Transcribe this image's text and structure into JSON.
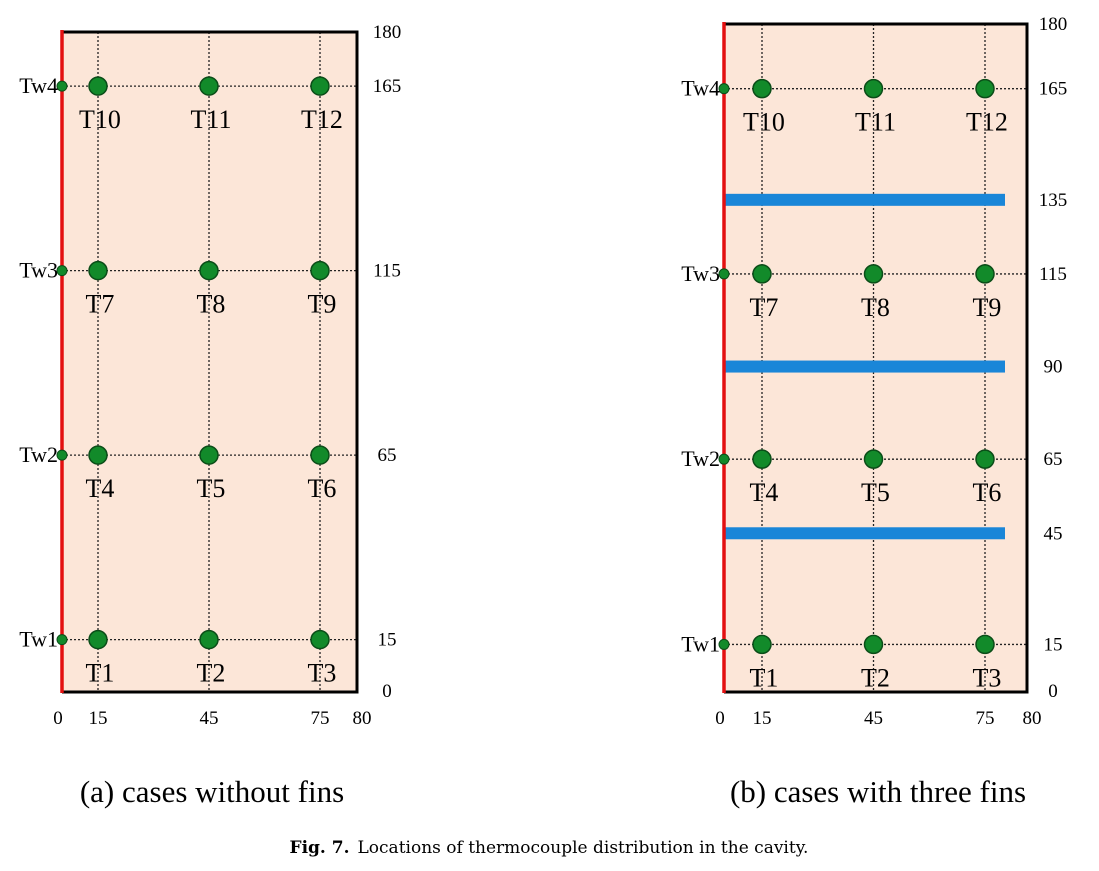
{
  "panels": [
    {
      "caption": "(a) cases without fins",
      "xticks": [
        0,
        15,
        45,
        75,
        80
      ],
      "yticks": [
        0,
        15,
        65,
        115,
        165,
        180
      ],
      "columns": [
        15,
        45,
        75
      ],
      "rows": [
        {
          "y": 15,
          "wall": "Tw1",
          "sensors": [
            "T1",
            "T2",
            "T3"
          ]
        },
        {
          "y": 65,
          "wall": "Tw2",
          "sensors": [
            "T4",
            "T5",
            "T6"
          ]
        },
        {
          "y": 115,
          "wall": "Tw3",
          "sensors": [
            "T7",
            "T8",
            "T9"
          ]
        },
        {
          "y": 165,
          "wall": "Tw4",
          "sensors": [
            "T10",
            "T11",
            "T12"
          ]
        }
      ]
    },
    {
      "caption": "(b) cases with three fins",
      "xticks": [
        0,
        15,
        45,
        75,
        80
      ],
      "yticks": [
        0,
        15,
        45,
        65,
        90,
        115,
        135,
        165,
        180
      ],
      "columns": [
        15,
        45,
        75
      ],
      "rows": [
        {
          "y": 15,
          "wall": "Tw1",
          "sensors": [
            "T1",
            "T2",
            "T3"
          ]
        },
        {
          "y": 65,
          "wall": "Tw2",
          "sensors": [
            "T4",
            "T5",
            "T6"
          ]
        },
        {
          "y": 115,
          "wall": "Tw3",
          "sensors": [
            "T7",
            "T8",
            "T9"
          ]
        },
        {
          "y": 165,
          "wall": "Tw4",
          "sensors": [
            "T10",
            "T11",
            "T12"
          ]
        }
      ],
      "fins": [
        45,
        90,
        135
      ]
    }
  ],
  "figure_caption": {
    "label": "Fig. 7.",
    "text": "Locations of thermocouple distribution in the cavity."
  }
}
